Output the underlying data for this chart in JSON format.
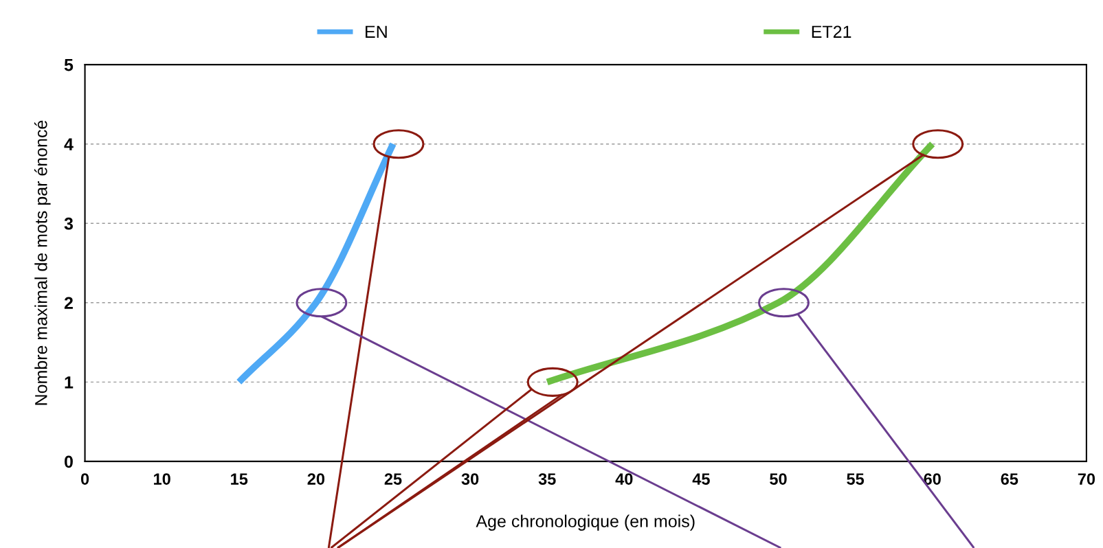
{
  "chart_data": {
    "type": "line",
    "xlabel": "Age chronologique (en mois)",
    "ylabel": "Nombre maximal de mots par énoncé",
    "categories": [
      "0",
      "10",
      "15",
      "20",
      "25",
      "30",
      "35",
      "40",
      "45",
      "50",
      "55",
      "60",
      "65",
      "70"
    ],
    "series": [
      {
        "name": "EN",
        "color": "#4fa9f5",
        "values": [
          null,
          null,
          1,
          2,
          4,
          null,
          null,
          null,
          null,
          null,
          null,
          null,
          null,
          null
        ]
      },
      {
        "name": "ET21",
        "color": "#6cbf43",
        "values": [
          null,
          null,
          null,
          null,
          null,
          null,
          1,
          null,
          null,
          2,
          null,
          4,
          null,
          null
        ]
      }
    ],
    "ylim": [
      0,
      5
    ],
    "yticks": [
      0,
      1,
      2,
      3,
      4,
      5
    ],
    "grid": "y",
    "legend": "top",
    "marker": "none",
    "line_style": "solid"
  }
}
